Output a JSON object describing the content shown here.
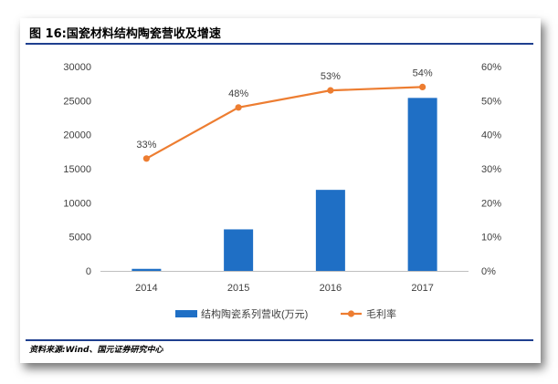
{
  "figure": {
    "title": "图 16:国瓷材料结构陶瓷营收及增速",
    "source": "资料来源:Wind、国元证券研究中心"
  },
  "chart_data": {
    "type": "bar",
    "categories": [
      "2014",
      "2015",
      "2016",
      "2017"
    ],
    "series": [
      {
        "name": "结构陶瓷系列营收(万元)",
        "type": "bar",
        "axis": "left",
        "color": "#1f6fc5",
        "values": [
          300,
          6100,
          11900,
          25400
        ]
      },
      {
        "name": "毛利率",
        "type": "line",
        "axis": "right",
        "color": "#ed7d31",
        "values": [
          33,
          48,
          53,
          54
        ],
        "labels": [
          "33%",
          "48%",
          "53%",
          "54%"
        ]
      }
    ],
    "y_left": {
      "ylim": [
        0,
        30000
      ],
      "ticks": [
        "0",
        "5000",
        "10000",
        "15000",
        "20000",
        "25000",
        "30000"
      ]
    },
    "y_right": {
      "ylim": [
        0,
        60
      ],
      "ticks": [
        "0%",
        "10%",
        "20%",
        "30%",
        "40%",
        "50%",
        "60%"
      ]
    },
    "grid": false,
    "legend_position": "bottom"
  }
}
